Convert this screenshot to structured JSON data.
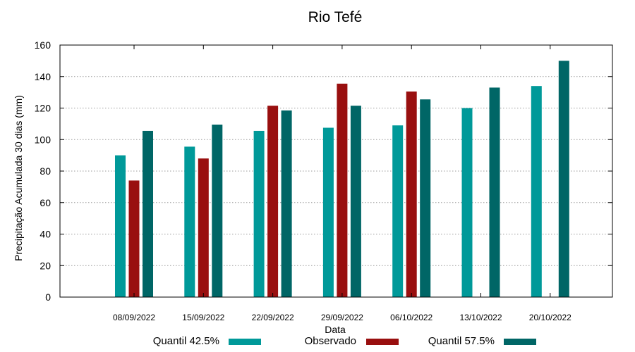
{
  "chart_data": {
    "type": "bar",
    "title": "Rio Tefé",
    "xlabel": "Data",
    "ylabel": "Precipitação Acumulada 30 dias (mm)",
    "ylim": [
      0,
      160
    ],
    "yticks": [
      0,
      20,
      40,
      60,
      80,
      100,
      120,
      140,
      160
    ],
    "grid": true,
    "legend_position": "bottom",
    "categories": [
      "08/09/2022",
      "15/09/2022",
      "22/09/2022",
      "29/09/2022",
      "06/10/2022",
      "13/10/2022",
      "20/10/2022"
    ],
    "series": [
      {
        "name": "Quantil 42.5%",
        "color": "#009999",
        "values": [
          90,
          95.5,
          105.5,
          107.5,
          109,
          120,
          134
        ]
      },
      {
        "name": "Observado",
        "color": "#990f0f",
        "values": [
          74,
          88,
          121.5,
          135.5,
          130.5,
          null,
          null
        ]
      },
      {
        "name": "Quantil 57.5%",
        "color": "#006666",
        "values": [
          105.5,
          109.5,
          118.5,
          121.5,
          125.5,
          133,
          150
        ]
      }
    ]
  }
}
